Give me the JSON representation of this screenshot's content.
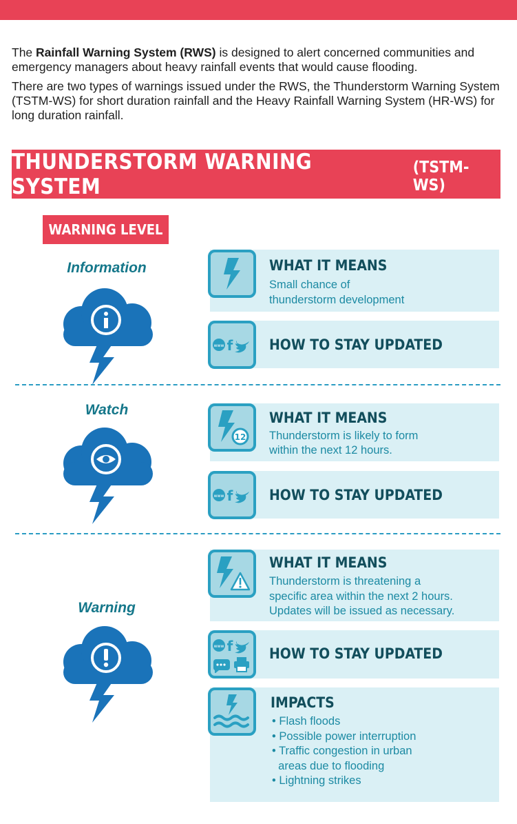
{
  "intro": {
    "p1_prefix": "The ",
    "p1_bold": "Rainfall Warning System (RWS)",
    "p1_rest": " is designed to alert concerned communities and emergency managers about heavy rainfall events that would cause flooding.",
    "p2": "There are two types of warnings issued under the RWS, the Thunderstorm Warning System (TSTM-WS) for short duration rainfall and the Heavy Rainfall Warning System (HR-WS) for long duration rainfall."
  },
  "banner": {
    "title": "THUNDERSTORM WARNING SYSTEM",
    "abbr": "(TSTM-WS)"
  },
  "level_tag": "WARNING LEVEL",
  "levels": [
    {
      "name": "Information",
      "cloud_icon": "info-cloud-icon",
      "means_title": "WHAT IT MEANS",
      "means_lines": [
        "Small chance of",
        "thunderstorm development"
      ],
      "stay_title": "HOW TO STAY UPDATED"
    },
    {
      "name": "Watch",
      "cloud_icon": "eye-cloud-icon",
      "means_title": "WHAT IT MEANS",
      "means_lines": [
        "Thunderstorm is likely to form",
        "within the next 12 hours."
      ],
      "timer_value": "12",
      "stay_title": "HOW TO STAY UPDATED"
    },
    {
      "name": "Warning",
      "cloud_icon": "exclamation-cloud-icon",
      "means_title": "WHAT IT MEANS",
      "means_lines": [
        "Thunderstorm is threatening a",
        "specific area within the next 2 hours.",
        "Updates will be issued as necessary."
      ],
      "stay_title": "HOW TO STAY UPDATED",
      "impacts_title": "IMPACTS",
      "impacts": [
        "• Flash floods",
        "• Possible power interruption",
        "• Traffic congestion in urban",
        "  areas due to flooding",
        "• Lightning strikes"
      ]
    }
  ],
  "colors": {
    "red": "#e84256",
    "blue": "#1a73b9",
    "teal": "#2aa0c2",
    "panel": "#daf0f5",
    "dark_title": "#124e5c"
  },
  "icon_text": {
    "www": "www",
    "facebook": "f"
  }
}
